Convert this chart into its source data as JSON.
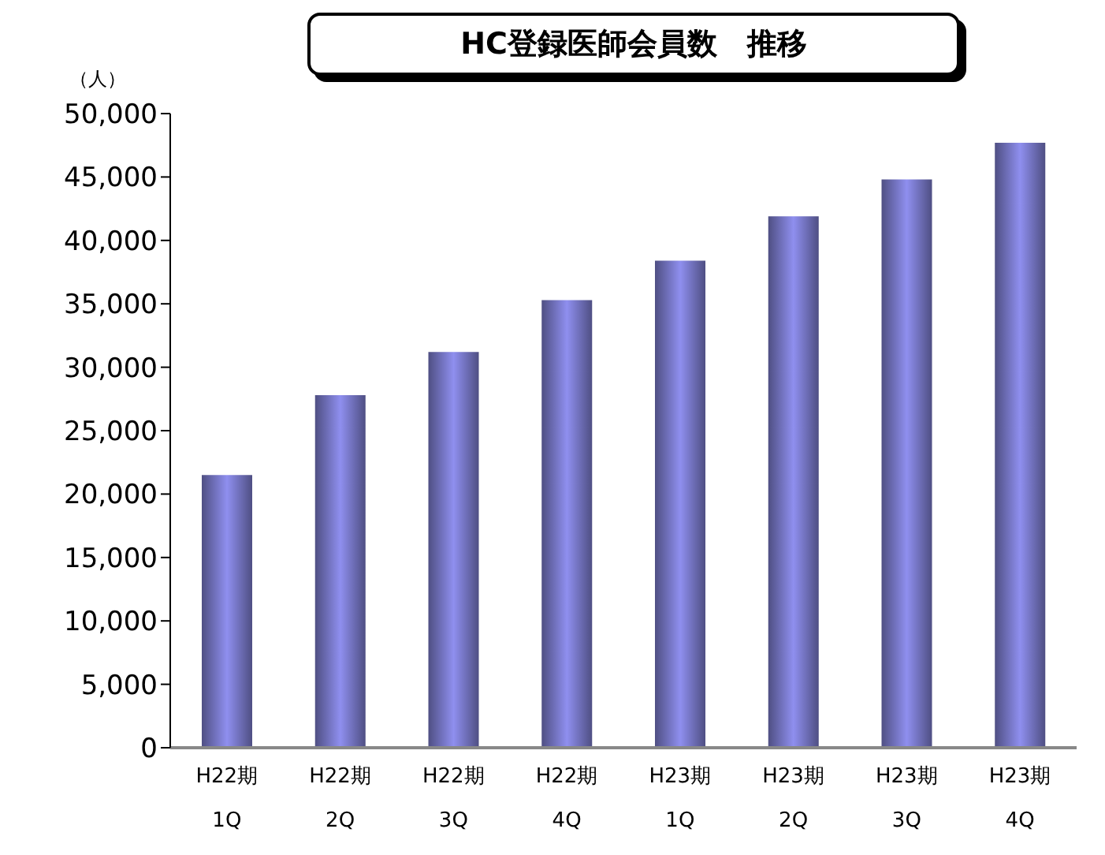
{
  "chart_data": {
    "type": "bar",
    "title": "HC登録医師会員数　推移",
    "ylabel": "（人）",
    "categories": [
      "H22期 1Q",
      "H22期 2Q",
      "H22期 3Q",
      "H22期 4Q",
      "H23期 1Q",
      "H23期 2Q",
      "H23期 3Q",
      "H23期 4Q"
    ],
    "values": [
      21500,
      27800,
      31200,
      35300,
      38400,
      41900,
      44800,
      47700
    ],
    "color": "#8f8fef",
    "ylim": [
      0,
      50000
    ],
    "yticks": [
      0,
      {
        "value": 5000,
        "label": "5,000"
      },
      {
        "value": 10000,
        "label": "10,000"
      },
      {
        "value": 15000,
        "label": "15,000"
      },
      {
        "value": 20000,
        "label": "20,000"
      },
      {
        "value": 25000,
        "label": "25,000"
      },
      {
        "value": 30000,
        "label": "30,000"
      },
      {
        "value": 35000,
        "label": "35,000"
      },
      {
        "value": 40000,
        "label": "40,000"
      },
      {
        "value": 45000,
        "label": "45,000"
      },
      {
        "value": 50000,
        "label": "50,000"
      }
    ],
    "grid": false,
    "legend": false
  }
}
